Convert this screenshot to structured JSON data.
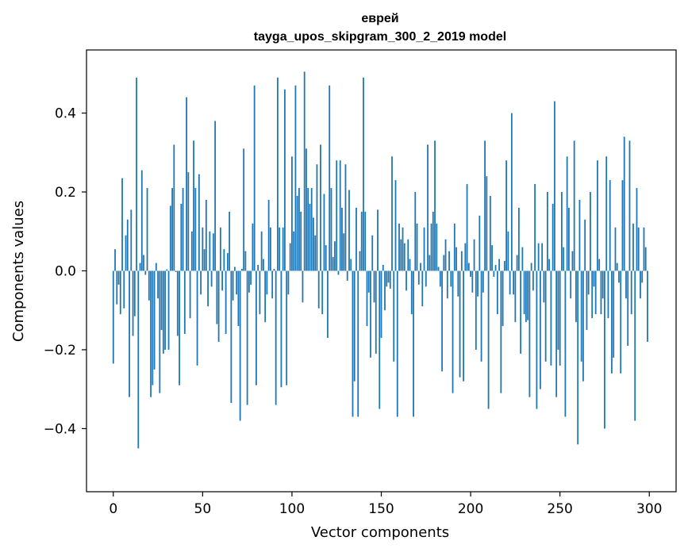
{
  "chart_data": {
    "type": "bar",
    "title": "еврей",
    "subtitle": "tayga_upos_skipgram_300_2_2019 model",
    "xlabel": "Vector components",
    "ylabel": "Components values",
    "xlim": [
      -15,
      315
    ],
    "ylim": [
      -0.56,
      0.56
    ],
    "xticks": [
      0,
      50,
      100,
      150,
      200,
      250,
      300
    ],
    "xtick_labels": [
      "0",
      "50",
      "100",
      "150",
      "200",
      "250",
      "300"
    ],
    "yticks": [
      -0.4,
      -0.2,
      0.0,
      0.2,
      0.4
    ],
    "ytick_labels": [
      "−0.4",
      "−0.2",
      "0.0",
      "0.2",
      "0.4"
    ],
    "bar_color": "#1f77b4",
    "grid": false,
    "legend": "none",
    "x": [
      0,
      1,
      2,
      3,
      4,
      5,
      6,
      7,
      8,
      9,
      10,
      11,
      12,
      13,
      14,
      15,
      16,
      17,
      18,
      19,
      20,
      21,
      22,
      23,
      24,
      25,
      26,
      27,
      28,
      29,
      30,
      31,
      32,
      33,
      34,
      35,
      36,
      37,
      38,
      39,
      40,
      41,
      42,
      43,
      44,
      45,
      46,
      47,
      48,
      49,
      50,
      51,
      52,
      53,
      54,
      55,
      56,
      57,
      58,
      59,
      60,
      61,
      62,
      63,
      64,
      65,
      66,
      67,
      68,
      69,
      70,
      71,
      72,
      73,
      74,
      75,
      76,
      77,
      78,
      79,
      80,
      81,
      82,
      83,
      84,
      85,
      86,
      87,
      88,
      89,
      90,
      91,
      92,
      93,
      94,
      95,
      96,
      97,
      98,
      99,
      100,
      101,
      102,
      103,
      104,
      105,
      106,
      107,
      108,
      109,
      110,
      111,
      112,
      113,
      114,
      115,
      116,
      117,
      118,
      119,
      120,
      121,
      122,
      123,
      124,
      125,
      126,
      127,
      128,
      129,
      130,
      131,
      132,
      133,
      134,
      135,
      136,
      137,
      138,
      139,
      140,
      141,
      142,
      143,
      144,
      145,
      146,
      147,
      148,
      149,
      150,
      151,
      152,
      153,
      154,
      155,
      156,
      157,
      158,
      159,
      160,
      161,
      162,
      163,
      164,
      165,
      166,
      167,
      168,
      169,
      170,
      171,
      172,
      173,
      174,
      175,
      176,
      177,
      178,
      179,
      180,
      181,
      182,
      183,
      184,
      185,
      186,
      187,
      188,
      189,
      190,
      191,
      192,
      193,
      194,
      195,
      196,
      197,
      198,
      199,
      200,
      201,
      202,
      203,
      204,
      205,
      206,
      207,
      208,
      209,
      210,
      211,
      212,
      213,
      214,
      215,
      216,
      217,
      218,
      219,
      220,
      221,
      222,
      223,
      224,
      225,
      226,
      227,
      228,
      229,
      230,
      231,
      232,
      233,
      234,
      235,
      236,
      237,
      238,
      239,
      240,
      241,
      242,
      243,
      244,
      245,
      246,
      247,
      248,
      249,
      250,
      251,
      252,
      253,
      254,
      255,
      256,
      257,
      258,
      259,
      260,
      261,
      262,
      263,
      264,
      265,
      266,
      267,
      268,
      269,
      270,
      271,
      272,
      273,
      274,
      275,
      276,
      277,
      278,
      279,
      280,
      281,
      282,
      283,
      284,
      285,
      286,
      287,
      288,
      289,
      290,
      291,
      292,
      293,
      294,
      295,
      296,
      297,
      298,
      299
    ],
    "values": [
      -0.235,
      0.055,
      -0.085,
      -0.035,
      -0.11,
      0.235,
      -0.095,
      0.09,
      0.13,
      -0.32,
      0.155,
      -0.165,
      -0.115,
      0.49,
      -0.45,
      0.02,
      0.255,
      0.04,
      -0.01,
      0.21,
      -0.075,
      -0.32,
      -0.29,
      -0.25,
      0.02,
      -0.07,
      -0.31,
      -0.15,
      -0.21,
      -0.2,
      0.004,
      -0.2,
      0.165,
      0.21,
      0.32,
      -0.003,
      -0.165,
      -0.29,
      0.17,
      0.21,
      -0.16,
      0.44,
      0.25,
      -0.12,
      0.1,
      0.33,
      0.21,
      -0.24,
      0.245,
      -0.06,
      0.11,
      0.055,
      0.18,
      -0.09,
      0.1,
      -0.04,
      0.095,
      0.38,
      -0.135,
      -0.18,
      0.11,
      -0.05,
      0.055,
      -0.16,
      0.045,
      0.15,
      -0.335,
      -0.075,
      0.01,
      -0.06,
      -0.14,
      -0.38,
      0.005,
      0.31,
      0.05,
      -0.34,
      -0.055,
      -0.035,
      0.12,
      0.47,
      -0.29,
      0.015,
      -0.11,
      0.1,
      0.03,
      -0.13,
      -0.06,
      0.18,
      0.11,
      -0.07,
      0.005,
      -0.34,
      0.49,
      0.11,
      -0.295,
      0.11,
      0.46,
      -0.29,
      -0.06,
      0.07,
      0.29,
      0.1,
      0.47,
      0.19,
      0.21,
      0.15,
      -0.08,
      0.505,
      0.31,
      0.21,
      0.17,
      0.21,
      0.135,
      0.09,
      0.27,
      -0.095,
      0.32,
      -0.11,
      0.195,
      0.065,
      -0.17,
      0.47,
      0.21,
      0.035,
      0.075,
      0.28,
      -0.01,
      0.28,
      0.16,
      0.095,
      0.27,
      -0.025,
      0.205,
      0.03,
      -0.37,
      -0.28,
      0.16,
      -0.37,
      0.05,
      0.15,
      0.49,
      0.15,
      -0.14,
      -0.055,
      -0.22,
      0.09,
      -0.08,
      -0.21,
      0.155,
      -0.35,
      -0.17,
      0.015,
      -0.1,
      -0.04,
      -0.03,
      -0.045,
      0.29,
      -0.23,
      0.23,
      -0.37,
      0.12,
      0.08,
      0.11,
      0.07,
      -0.05,
      0.08,
      0.03,
      -0.11,
      -0.37,
      0.2,
      0.12,
      -0.035,
      0.02,
      -0.09,
      0.11,
      -0.04,
      0.32,
      0.04,
      0.12,
      0.15,
      0.33,
      0.12,
      0.01,
      -0.04,
      -0.255,
      0.04,
      0.08,
      -0.07,
      0.05,
      -0.04,
      -0.31,
      0.12,
      0.06,
      -0.065,
      -0.27,
      0.05,
      -0.28,
      0.07,
      0.22,
      0.02,
      -0.015,
      -0.055,
      0.08,
      -0.2,
      -0.065,
      0.14,
      -0.23,
      -0.055,
      0.33,
      0.24,
      -0.35,
      0.19,
      0.065,
      -0.015,
      0.015,
      -0.11,
      0.03,
      -0.31,
      -0.14,
      0.025,
      0.28,
      0.1,
      -0.06,
      0.4,
      -0.06,
      -0.13,
      0.04,
      0.16,
      -0.21,
      0.06,
      -0.11,
      -0.13,
      -0.125,
      -0.32,
      0.02,
      -0.05,
      0.22,
      -0.35,
      0.07,
      -0.3,
      0.07,
      -0.08,
      -0.23,
      0.2,
      0.03,
      -0.24,
      0.17,
      0.43,
      -0.32,
      -0.2,
      -0.24,
      0.2,
      0.06,
      -0.37,
      0.29,
      0.16,
      -0.07,
      0.05,
      0.33,
      -0.13,
      -0.44,
      0.18,
      -0.23,
      -0.28,
      0.13,
      -0.15,
      -0.06,
      0.2,
      -0.12,
      -0.04,
      -0.11,
      0.28,
      0.03,
      -0.11,
      -0.07,
      -0.4,
      0.29,
      -0.12,
      0.23,
      -0.26,
      -0.22,
      0.11,
      0.02,
      -0.03,
      -0.26,
      0.23,
      0.34,
      -0.07,
      -0.19,
      0.33,
      -0.11,
      0.12,
      -0.38,
      0.21,
      0.11,
      -0.07,
      -0.03,
      0.11,
      0.06,
      -0.18
    ]
  }
}
